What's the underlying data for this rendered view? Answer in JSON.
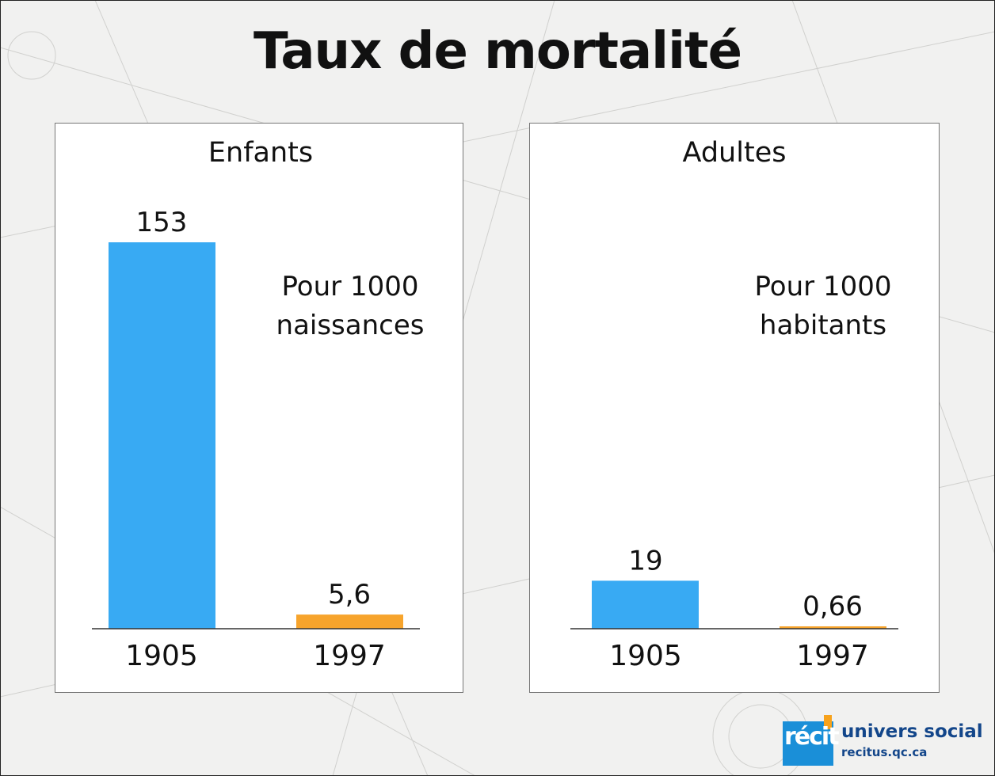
{
  "title": "Taux de mortalité",
  "colors": {
    "y1905": "#38aaf3",
    "y1997": "#f7a42c",
    "text": "#111111"
  },
  "chart_data": [
    {
      "type": "bar",
      "title": "Enfants",
      "note": [
        "Pour 1000",
        "naissances"
      ],
      "categories": [
        "1905",
        "1997"
      ],
      "values": [
        153,
        5.6
      ],
      "labels": [
        "153",
        "5,6"
      ],
      "ylim": [
        0,
        153
      ]
    },
    {
      "type": "bar",
      "title": "Adultes",
      "note": [
        "Pour 1000",
        "habitants"
      ],
      "categories": [
        "1905",
        "1997"
      ],
      "values": [
        19,
        0.66
      ],
      "labels": [
        "19",
        "0,66"
      ],
      "ylim": [
        0,
        153
      ]
    }
  ],
  "logo": {
    "brand": "récit",
    "name": "univers social",
    "url": "recitus.qc.ca"
  }
}
